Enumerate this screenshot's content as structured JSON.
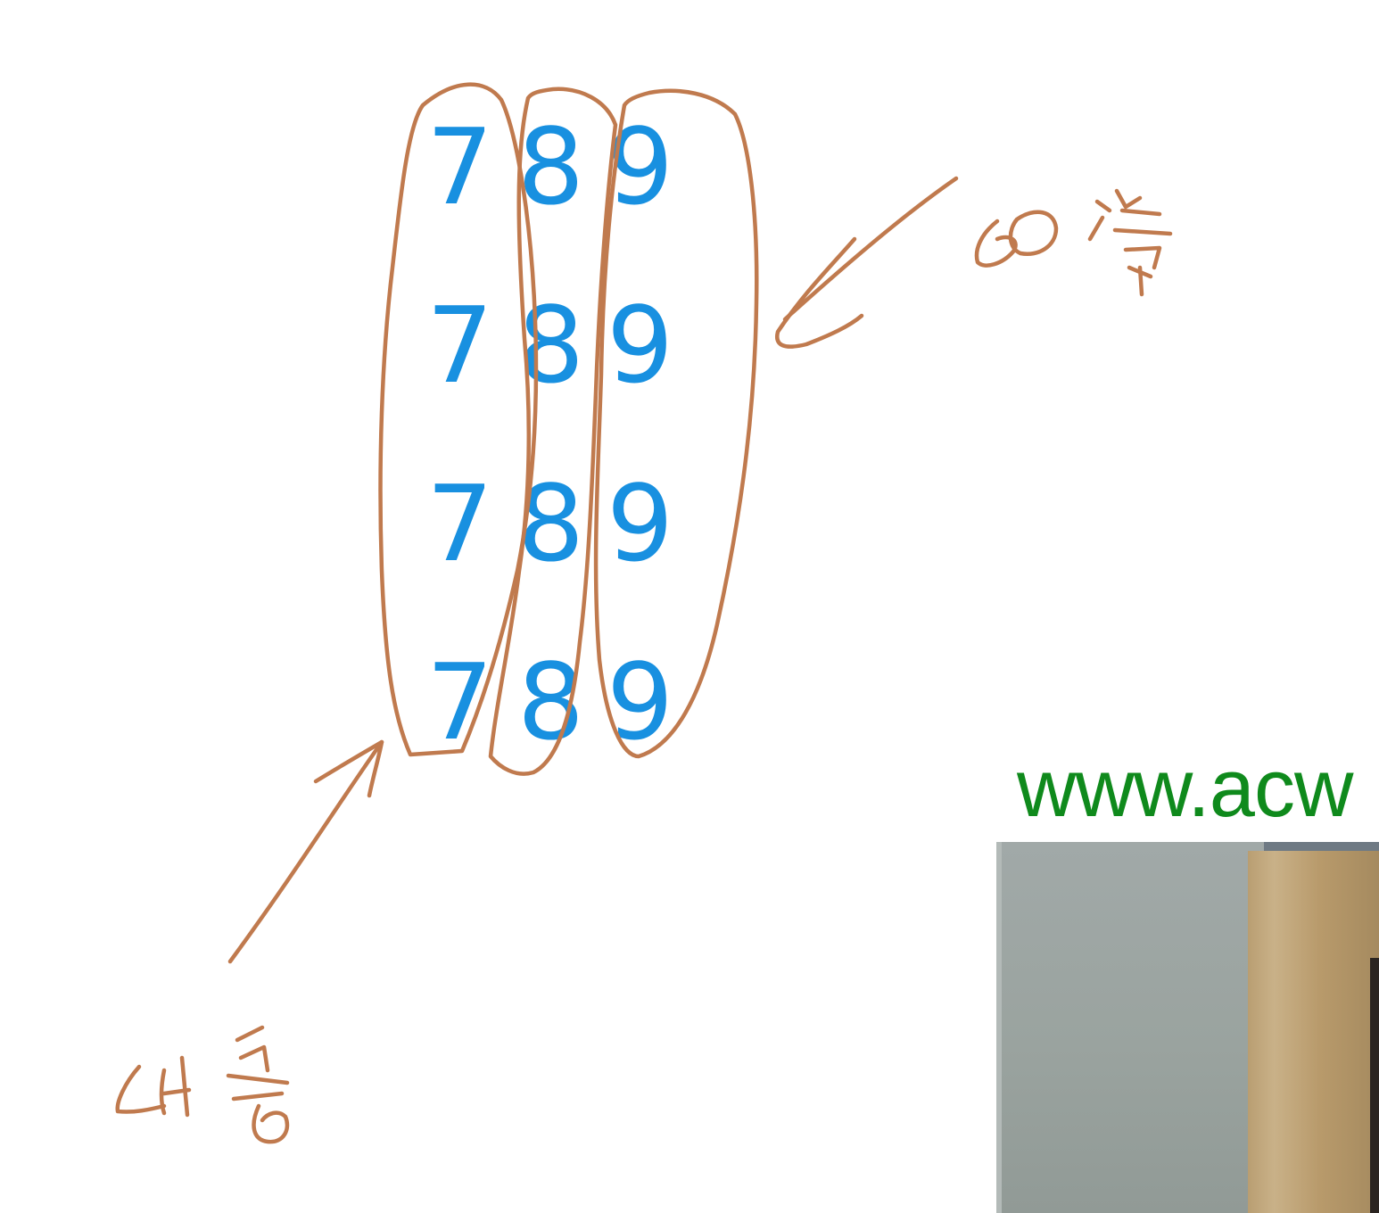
{
  "whiteboard": {
    "digit_rows": [
      [
        "7",
        "8",
        "9"
      ],
      [
        "7",
        "8",
        "9"
      ],
      [
        "7",
        "8",
        "9"
      ],
      [
        "7",
        "8",
        "9"
      ]
    ],
    "digit_color": "#1890e0",
    "annotation_color": "#c07a4e",
    "handwritten_notes": {
      "right_note": "60 号",
      "left_note": "64 号"
    }
  },
  "watermark": {
    "url_text": "www.acw",
    "color": "#0f8a1c"
  },
  "webcam": {
    "label": "webcam-feed"
  }
}
